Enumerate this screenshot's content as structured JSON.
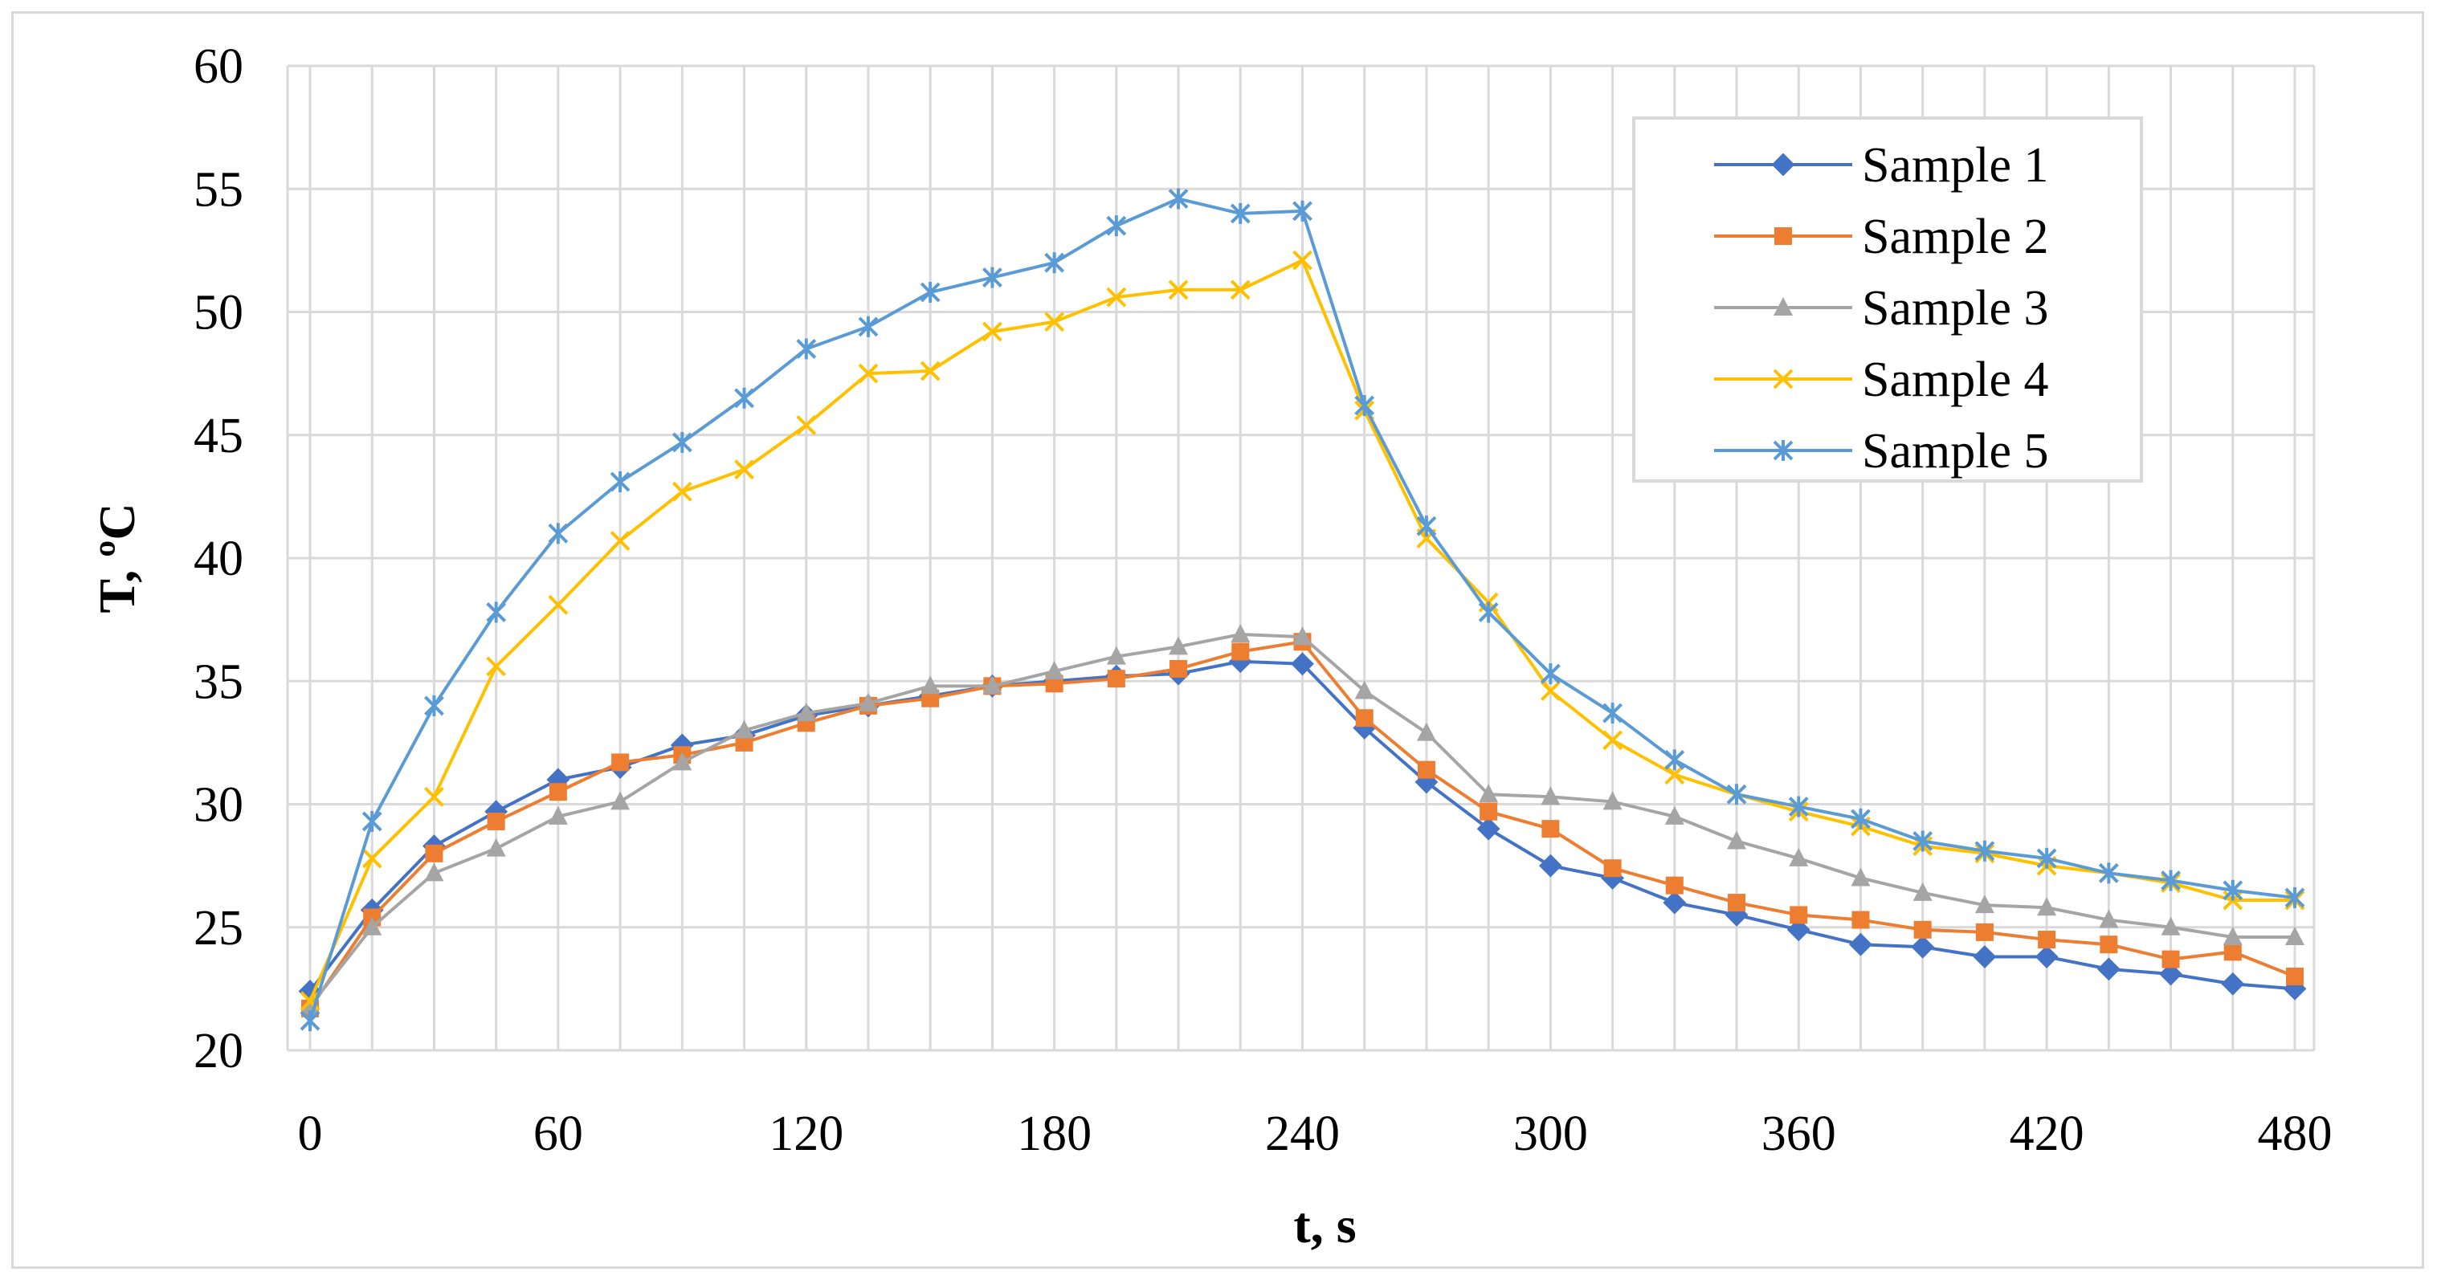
{
  "chart_data": {
    "type": "line",
    "title": "",
    "xlabel": "t, s",
    "ylabel": "T,  ºC",
    "xlim": [
      0,
      480
    ],
    "ylim": [
      20,
      60
    ],
    "xticks": [
      0,
      60,
      120,
      180,
      240,
      300,
      360,
      420,
      480
    ],
    "yticks": [
      20,
      25,
      30,
      35,
      40,
      45,
      50,
      55,
      60
    ],
    "grid": true,
    "legend_position": "top-right",
    "x": [
      0,
      15,
      30,
      45,
      60,
      75,
      90,
      105,
      120,
      135,
      150,
      165,
      180,
      195,
      210,
      225,
      240,
      255,
      270,
      285,
      300,
      315,
      330,
      345,
      360,
      375,
      390,
      405,
      420,
      435,
      450,
      465,
      480
    ],
    "series": [
      {
        "name": "Sample 1",
        "color": "#4472C4",
        "marker": "diamond",
        "values": [
          22.4,
          25.7,
          28.3,
          29.7,
          31.0,
          31.5,
          32.4,
          32.8,
          33.6,
          34.0,
          34.4,
          34.8,
          35.0,
          35.2,
          35.3,
          35.8,
          35.7,
          33.1,
          30.9,
          29.0,
          27.5,
          27.0,
          26.0,
          25.5,
          24.9,
          24.3,
          24.2,
          23.8,
          23.8,
          23.3,
          23.1,
          22.7,
          22.5
        ]
      },
      {
        "name": "Sample 2",
        "color": "#ED7D31",
        "marker": "square",
        "values": [
          21.7,
          25.4,
          28.0,
          29.3,
          30.5,
          31.7,
          32.0,
          32.5,
          33.3,
          34.0,
          34.3,
          34.8,
          34.9,
          35.1,
          35.5,
          36.2,
          36.6,
          33.5,
          31.4,
          29.7,
          29.0,
          27.4,
          26.7,
          26.0,
          25.5,
          25.3,
          24.9,
          24.8,
          24.5,
          24.3,
          23.7,
          24.0,
          23.0
        ]
      },
      {
        "name": "Sample 3",
        "color": "#A5A5A5",
        "marker": "triangle",
        "values": [
          21.8,
          25.0,
          27.2,
          28.2,
          29.5,
          30.1,
          31.7,
          33.0,
          33.7,
          34.1,
          34.8,
          34.8,
          35.4,
          36.0,
          36.4,
          36.9,
          36.8,
          34.6,
          32.9,
          30.4,
          30.3,
          30.1,
          29.5,
          28.5,
          27.8,
          27.0,
          26.4,
          25.9,
          25.8,
          25.3,
          25.0,
          24.6,
          24.6
        ]
      },
      {
        "name": "Sample 4",
        "color": "#FFC000",
        "marker": "x",
        "values": [
          22.0,
          27.8,
          30.3,
          35.6,
          38.1,
          40.7,
          42.7,
          43.6,
          45.4,
          47.5,
          47.6,
          49.2,
          49.6,
          50.6,
          50.9,
          50.9,
          52.1,
          46.0,
          40.8,
          38.2,
          34.6,
          32.6,
          31.2,
          30.4,
          29.7,
          29.1,
          28.3,
          28.0,
          27.5,
          27.2,
          26.8,
          26.1,
          26.1
        ]
      },
      {
        "name": "Sample 5",
        "color": "#5B9BD5",
        "marker": "asterisk",
        "values": [
          21.2,
          29.3,
          34.0,
          37.8,
          41.0,
          43.1,
          44.7,
          46.5,
          48.5,
          49.4,
          50.8,
          51.4,
          52.0,
          53.5,
          54.6,
          54.0,
          54.1,
          46.2,
          41.3,
          37.8,
          35.3,
          33.7,
          31.8,
          30.4,
          29.9,
          29.4,
          28.5,
          28.1,
          27.8,
          27.2,
          26.9,
          26.5,
          26.2
        ]
      }
    ]
  }
}
